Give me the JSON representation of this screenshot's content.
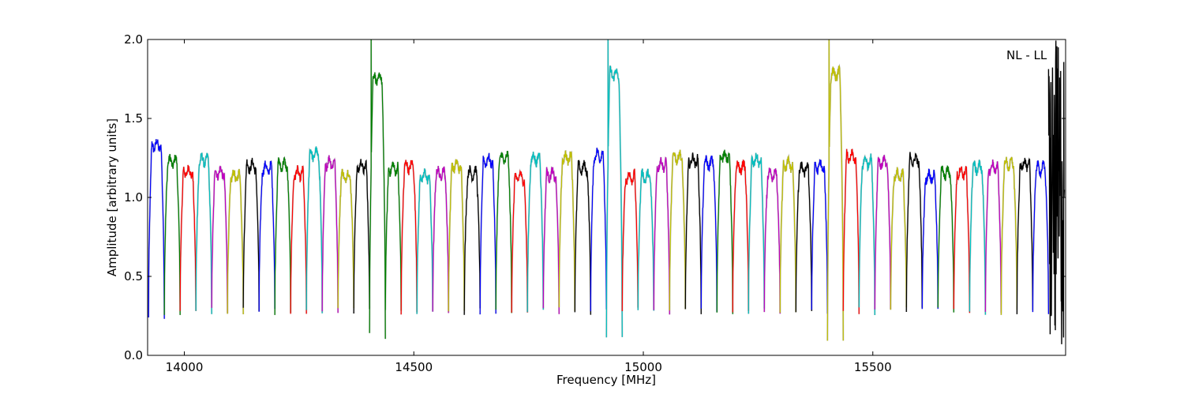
{
  "chart_data": {
    "type": "line",
    "title": "",
    "annotation": "NL - LL",
    "xlabel": "Frequency [MHz]",
    "ylabel": "Amplitude [arbitrary units]",
    "xlim": [
      13920,
      15920
    ],
    "ylim": [
      0.0,
      2.0
    ],
    "xticks": [
      14000,
      14500,
      15000,
      15500
    ],
    "yticks": [
      0.0,
      0.5,
      1.0,
      1.5,
      2.0
    ],
    "xtick_labels": [
      "14000",
      "14500",
      "15000",
      "15500"
    ],
    "ytick_labels": [
      "0.0",
      "0.5",
      "1.0",
      "1.5",
      "2.0"
    ],
    "grid": false,
    "legend": "none",
    "baseline_color": "#bbbbbb",
    "colors": [
      "#0000ff",
      "#008000",
      "#ff0000",
      "#00bfbf",
      "#bf00bf",
      "#bfbf00",
      "#000000"
    ],
    "subbands": {
      "start_mhz": 13922,
      "width_mhz": 34.4,
      "count": 58,
      "rolloff_floor": 0.28,
      "typical_level": 1.2
    },
    "series": [
      {
        "start": 13922,
        "end": 13955,
        "peak": 1.33,
        "floor": 0.25,
        "color": "#0000ff"
      },
      {
        "start": 14405,
        "end": 14440,
        "peak": 1.75,
        "floor": 0.12,
        "color": "#008000",
        "spike": 2.0
      },
      {
        "start": 14910,
        "end": 14945,
        "peak": 1.78,
        "floor": 0.1,
        "color": "#00bfbf",
        "spike": 2.0
      },
      {
        "start": 15405,
        "end": 15440,
        "peak": 1.78,
        "floor": 0.1,
        "color": "#bfbf00",
        "spike": 2.0
      },
      {
        "start": 15870,
        "end": 15920,
        "peak": 2.0,
        "floor": 0.02,
        "color": "#000000",
        "noisy": true
      }
    ]
  }
}
